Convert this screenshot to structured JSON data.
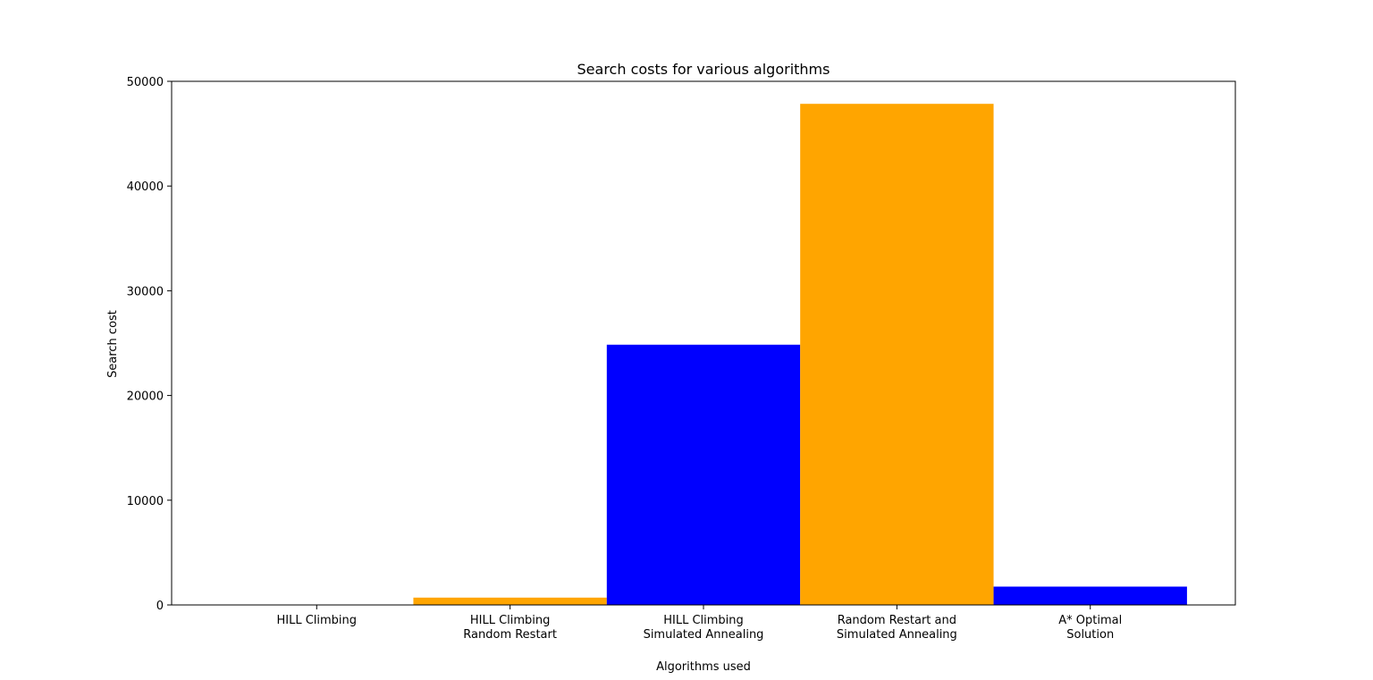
{
  "chart_data": {
    "type": "bar",
    "title": "Search costs for various algorithms",
    "xlabel": "Algorithms used",
    "ylabel": "Search cost",
    "categories": [
      [
        "HILL Climbing"
      ],
      [
        "HILL Climbing",
        "Random Restart"
      ],
      [
        "HILL Climbing",
        "Simulated Annealing"
      ],
      [
        "Random Restart and",
        "Simulated Annealing"
      ],
      [
        "A* Optimal",
        "Solution"
      ]
    ],
    "values": [
      20,
      700,
      24850,
      47850,
      1750
    ],
    "bar_colors": [
      "#0000ff",
      "#ffa500",
      "#0000ff",
      "#ffa500",
      "#0000ff"
    ],
    "ylim": [
      0,
      50000
    ],
    "yticks": [
      0,
      10000,
      20000,
      30000,
      40000,
      50000
    ],
    "xlim": [
      -0.75,
      4.75
    ],
    "grid": false,
    "legend": "none"
  }
}
